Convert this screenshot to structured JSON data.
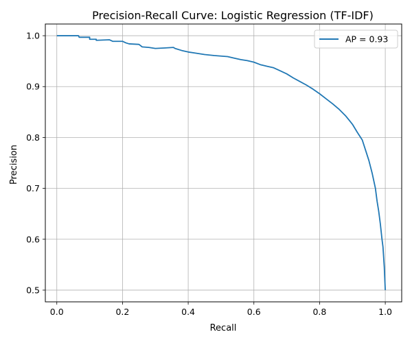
{
  "chart_data": {
    "type": "line",
    "title": "Precision-Recall Curve: Logistic Regression (TF-IDF)",
    "xlabel": "Recall",
    "ylabel": "Precision",
    "xlim": [
      -0.035,
      1.05
    ],
    "ylim": [
      0.477,
      1.023
    ],
    "xticks": [
      {
        "value": 0.0,
        "label": "0.0"
      },
      {
        "value": 0.2,
        "label": "0.2"
      },
      {
        "value": 0.4,
        "label": "0.4"
      },
      {
        "value": 0.6,
        "label": "0.6"
      },
      {
        "value": 0.8,
        "label": "0.8"
      },
      {
        "value": 1.0,
        "label": "1.0"
      }
    ],
    "yticks": [
      {
        "value": 0.5,
        "label": "0.5"
      },
      {
        "value": 0.6,
        "label": "0.6"
      },
      {
        "value": 0.7,
        "label": "0.7"
      },
      {
        "value": 0.8,
        "label": "0.8"
      },
      {
        "value": 0.9,
        "label": "0.9"
      },
      {
        "value": 1.0,
        "label": "1.0"
      }
    ],
    "grid": true,
    "legend_position": "upper right",
    "series": [
      {
        "name": "AP = 0.93",
        "color": "#1f77b4",
        "x": [
          0.0,
          0.02,
          0.04,
          0.066,
          0.068,
          0.1,
          0.1,
          0.12,
          0.12,
          0.16,
          0.17,
          0.2,
          0.21,
          0.22,
          0.25,
          0.26,
          0.28,
          0.3,
          0.33,
          0.355,
          0.36,
          0.38,
          0.4,
          0.42,
          0.45,
          0.48,
          0.5,
          0.52,
          0.54,
          0.56,
          0.58,
          0.6,
          0.62,
          0.64,
          0.66,
          0.68,
          0.7,
          0.72,
          0.74,
          0.76,
          0.78,
          0.8,
          0.82,
          0.84,
          0.86,
          0.88,
          0.9,
          0.915,
          0.93,
          0.94,
          0.95,
          0.96,
          0.97,
          0.975,
          0.98,
          0.985,
          0.99,
          0.993,
          0.995,
          0.997,
          0.998,
          0.999,
          1.0
        ],
        "y": [
          1.0,
          1.0,
          1.0,
          1.0,
          0.997,
          0.997,
          0.993,
          0.993,
          0.991,
          0.992,
          0.989,
          0.989,
          0.986,
          0.984,
          0.983,
          0.978,
          0.977,
          0.975,
          0.976,
          0.977,
          0.975,
          0.971,
          0.968,
          0.966,
          0.963,
          0.961,
          0.96,
          0.959,
          0.956,
          0.953,
          0.951,
          0.948,
          0.943,
          0.94,
          0.937,
          0.931,
          0.925,
          0.917,
          0.91,
          0.903,
          0.895,
          0.886,
          0.876,
          0.866,
          0.855,
          0.842,
          0.826,
          0.81,
          0.795,
          0.775,
          0.755,
          0.73,
          0.7,
          0.675,
          0.655,
          0.63,
          0.6,
          0.585,
          0.565,
          0.545,
          0.53,
          0.515,
          0.5
        ]
      }
    ]
  }
}
